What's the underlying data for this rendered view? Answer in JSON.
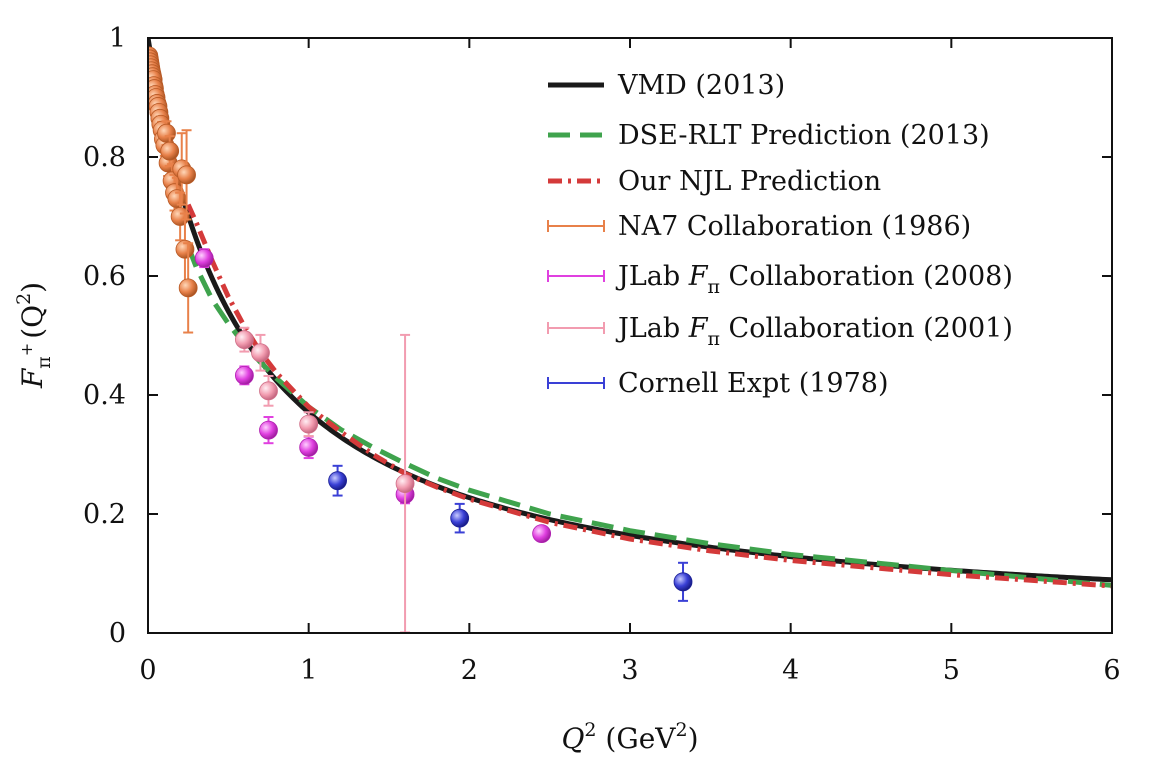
{
  "chart_data": {
    "type": "scatter",
    "xlim": [
      0,
      6
    ],
    "ylim": [
      0,
      1
    ],
    "xticks": [
      "0",
      "1",
      "2",
      "3",
      "4",
      "5",
      "6"
    ],
    "yticks": [
      "0",
      "0.2",
      "0.4",
      "0.6",
      "0.8",
      "1"
    ],
    "xlabel": {
      "var": "Q",
      "exp": "2",
      "unit_open": " (GeV",
      "unit_exp": "2",
      "unit_close": ")"
    },
    "ylabel": {
      "var": "F",
      "sub": "π",
      "subsup": "+",
      "rest": "(Q",
      "exp": "2",
      "close": ")"
    },
    "legend_position": "top-right",
    "grid": false,
    "curves": [
      {
        "id": "vmd",
        "name": "VMD (2013)",
        "color": "#1a1a1a",
        "dash": "solid",
        "x_range": [
          0,
          6
        ],
        "formula": "1/(1+Q2/0.589)"
      },
      {
        "id": "dse",
        "name": "DSE-RLT Prediction (2013)",
        "color": "#3fa34d",
        "dash": "dashed",
        "x_range": [
          0.25,
          6
        ],
        "points": [
          [
            0.25,
            0.65
          ],
          [
            0.3,
            0.615
          ],
          [
            0.4,
            0.56
          ],
          [
            0.5,
            0.52
          ],
          [
            0.6,
            0.485
          ],
          [
            0.7,
            0.455
          ],
          [
            0.8,
            0.428
          ],
          [
            1.0,
            0.38
          ],
          [
            1.2,
            0.342
          ],
          [
            1.4,
            0.312
          ],
          [
            1.6,
            0.285
          ],
          [
            1.8,
            0.26
          ],
          [
            2.0,
            0.24
          ],
          [
            2.5,
            0.2
          ],
          [
            3.0,
            0.172
          ],
          [
            3.5,
            0.15
          ],
          [
            4.0,
            0.132
          ],
          [
            5.0,
            0.105
          ],
          [
            6.0,
            0.08
          ]
        ]
      },
      {
        "id": "njl",
        "name": "Our NJL Prediction",
        "color": "#d43a3a",
        "dash": "dashdot",
        "x_range": [
          0.25,
          6
        ],
        "points": [
          [
            0.25,
            0.72
          ],
          [
            0.3,
            0.69
          ],
          [
            0.4,
            0.625
          ],
          [
            0.5,
            0.565
          ],
          [
            0.6,
            0.515
          ],
          [
            0.7,
            0.472
          ],
          [
            0.8,
            0.437
          ],
          [
            1.0,
            0.38
          ],
          [
            1.2,
            0.338
          ],
          [
            1.4,
            0.3
          ],
          [
            1.6,
            0.268
          ],
          [
            1.8,
            0.245
          ],
          [
            2.0,
            0.225
          ],
          [
            2.5,
            0.186
          ],
          [
            3.0,
            0.158
          ],
          [
            3.5,
            0.138
          ],
          [
            4.0,
            0.122
          ],
          [
            5.0,
            0.098
          ],
          [
            6.0,
            0.079
          ]
        ]
      }
    ],
    "series": [
      {
        "id": "na7",
        "name": "NA7 Collaboration (1986)",
        "color": "#e8814a",
        "stroke": "#b85a26",
        "points": [
          [
            0.005,
            0.97,
            0.005
          ],
          [
            0.008,
            0.965,
            0.005
          ],
          [
            0.011,
            0.96,
            0.005
          ],
          [
            0.014,
            0.955,
            0.006
          ],
          [
            0.017,
            0.95,
            0.006
          ],
          [
            0.02,
            0.945,
            0.006
          ],
          [
            0.024,
            0.94,
            0.007
          ],
          [
            0.028,
            0.935,
            0.007
          ],
          [
            0.032,
            0.93,
            0.007
          ],
          [
            0.036,
            0.92,
            0.008
          ],
          [
            0.04,
            0.915,
            0.008
          ],
          [
            0.045,
            0.905,
            0.009
          ],
          [
            0.05,
            0.9,
            0.009
          ],
          [
            0.056,
            0.89,
            0.01
          ],
          [
            0.062,
            0.885,
            0.01
          ],
          [
            0.068,
            0.875,
            0.011
          ],
          [
            0.074,
            0.865,
            0.012
          ],
          [
            0.08,
            0.855,
            0.013
          ],
          [
            0.088,
            0.845,
            0.014
          ],
          [
            0.096,
            0.83,
            0.016
          ],
          [
            0.105,
            0.82,
            0.018
          ],
          [
            0.115,
            0.84,
            0.02
          ],
          [
            0.125,
            0.79,
            0.022
          ],
          [
            0.135,
            0.81,
            0.025
          ],
          [
            0.15,
            0.76,
            0.028
          ],
          [
            0.165,
            0.74,
            0.03
          ],
          [
            0.18,
            0.73,
            0.035
          ],
          [
            0.2,
            0.7,
            0.04
          ],
          [
            0.21,
            0.78,
            0.06
          ],
          [
            0.23,
            0.645,
            0.06
          ],
          [
            0.24,
            0.77,
            0.075
          ],
          [
            0.25,
            0.58,
            0.075
          ]
        ]
      },
      {
        "id": "jlab2008",
        "name": "JLab F_π Collaboration (2008)",
        "color": "#e040e0",
        "stroke": "#b020b0",
        "points": [
          [
            0.35,
            0.63,
            0.015
          ],
          [
            0.6,
            0.433,
            0.015
          ],
          [
            0.75,
            0.341,
            0.022
          ],
          [
            1.0,
            0.312,
            0.018
          ],
          [
            1.6,
            0.233,
            0.015
          ],
          [
            2.45,
            0.167,
            0.01
          ]
        ]
      },
      {
        "id": "jlab2001",
        "name": "JLab F_π Collaboration (2001)",
        "color": "#f29cb0",
        "stroke": "#d06f88",
        "points": [
          [
            0.6,
            0.493,
            0.02
          ],
          [
            0.7,
            0.471,
            0.03
          ],
          [
            0.75,
            0.407,
            0.025
          ],
          [
            1.0,
            0.351,
            0.02
          ],
          [
            1.6,
            0.251,
            0.25
          ]
        ]
      },
      {
        "id": "cornell",
        "name": "Cornell Expt (1978)",
        "color": "#3a40d6",
        "stroke": "#1c2196",
        "points": [
          [
            1.18,
            0.256,
            0.025
          ],
          [
            1.94,
            0.193,
            0.024
          ],
          [
            3.33,
            0.086,
            0.032
          ]
        ]
      }
    ]
  },
  "legend": {
    "entries": [
      {
        "key": "vmd",
        "label": "VMD (2013)"
      },
      {
        "key": "dse",
        "label": "DSE-RLT Prediction (2013)"
      },
      {
        "key": "njl",
        "label": "Our NJL Prediction"
      },
      {
        "key": "na7",
        "label": "NA7 Collaboration (1986)"
      },
      {
        "key": "jlab2008",
        "label_pre": "JLab ",
        "label_var": "F",
        "label_sub": "π",
        "label_post": " Collaboration (2008)"
      },
      {
        "key": "jlab2001",
        "label_pre": "JLab ",
        "label_var": "F",
        "label_sub": "π",
        "label_post": " Collaboration (2001)"
      },
      {
        "key": "cornell",
        "label": "Cornell Expt (1978)"
      }
    ]
  }
}
